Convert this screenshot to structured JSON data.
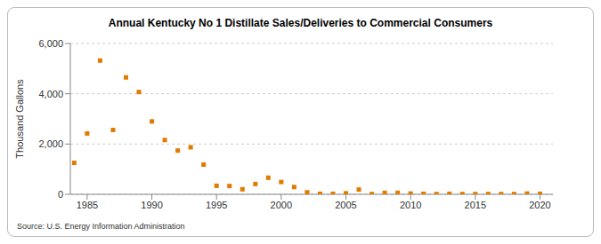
{
  "chart_data": {
    "type": "scatter",
    "title": "Annual Kentucky No 1 Distillate Sales/Deliveries to Commercial Consumers",
    "y_label": "Thousand Gallons",
    "source": "Source: U.S. Energy Information Administration",
    "x": [
      1984,
      1985,
      1986,
      1987,
      1988,
      1989,
      1990,
      1991,
      1992,
      1993,
      1994,
      1995,
      1996,
      1997,
      1998,
      1999,
      2000,
      2001,
      2002,
      2003,
      2004,
      2005,
      2006,
      2007,
      2008,
      2009,
      2010,
      2011,
      2012,
      2013,
      2014,
      2015,
      2016,
      2017,
      2018,
      2019,
      2020
    ],
    "values": [
      1250,
      2420,
      5320,
      2560,
      4650,
      4070,
      2900,
      2160,
      1740,
      1870,
      1180,
      340,
      330,
      200,
      410,
      660,
      490,
      290,
      80,
      20,
      20,
      40,
      190,
      10,
      60,
      60,
      30,
      20,
      10,
      20,
      10,
      10,
      10,
      10,
      10,
      30,
      20
    ],
    "color": "#e07b00",
    "marker": "square",
    "xlim": [
      1983.7,
      2021
    ],
    "xticks": [
      1985,
      1990,
      1995,
      2000,
      2005,
      2010,
      2015,
      2020
    ],
    "ylim": [
      0,
      6000
    ],
    "yticks": [
      0,
      {
        "value": 2000,
        "label": "2,000"
      },
      {
        "value": 4000,
        "label": "4,000"
      },
      {
        "value": 6000,
        "label": "6,000"
      }
    ],
    "grid": true
  }
}
